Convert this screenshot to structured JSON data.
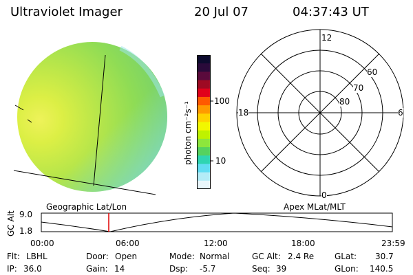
{
  "header": {
    "instrument": "Ultraviolet Imager",
    "date": "20 Jul 07",
    "time": "04:37:43 UT"
  },
  "colorbar": {
    "title": "photon cm⁻²s⁻¹",
    "ticks": [
      "100",
      "10"
    ],
    "colors": [
      "#0d0b2e",
      "#2a0a3a",
      "#5a0a3c",
      "#9e0a23",
      "#e1001b",
      "#ff5a00",
      "#ff9b00",
      "#ffd300",
      "#f2f700",
      "#bff200",
      "#8de63c",
      "#55d25f",
      "#2fd5b2",
      "#62ddf2",
      "#b4ecf7",
      "#e9f6fb"
    ]
  },
  "panels": {
    "left_label": "Geographic Lat/Lon",
    "right_label": "Apex MLat/MLT"
  },
  "polar": {
    "lat_labels": [
      "60",
      "70",
      "80"
    ],
    "mlt_labels": [
      "12",
      "18",
      "6",
      "0"
    ]
  },
  "altitude_plot": {
    "ylabel": "GC Alt",
    "ymax_label": "9.0",
    "ymin_label": "1.8",
    "time_ticks": [
      "00:00",
      "06:00",
      "12:00",
      "18:00",
      "23:59"
    ],
    "current_time_marker": "04:37"
  },
  "footer": {
    "flt_label": "Flt:",
    "flt_value": "LBHL",
    "ip_label": "IP:",
    "ip_value": "36.0",
    "door_label": "Door:",
    "door_value": "Open",
    "gain_label": "Gain:",
    "gain_value": "14",
    "mode_label": "Mode:",
    "mode_value": "Normal",
    "dsp_label": "Dsp:",
    "dsp_value": "-5.7",
    "gcalt_label": "GC Alt:",
    "gcalt_value": "2.4 Re",
    "seq_label": "Seq:",
    "seq_value": "39",
    "glat_label": "GLat:",
    "glat_value": "30.7",
    "glon_label": "GLon:",
    "glon_value": "140.5"
  }
}
